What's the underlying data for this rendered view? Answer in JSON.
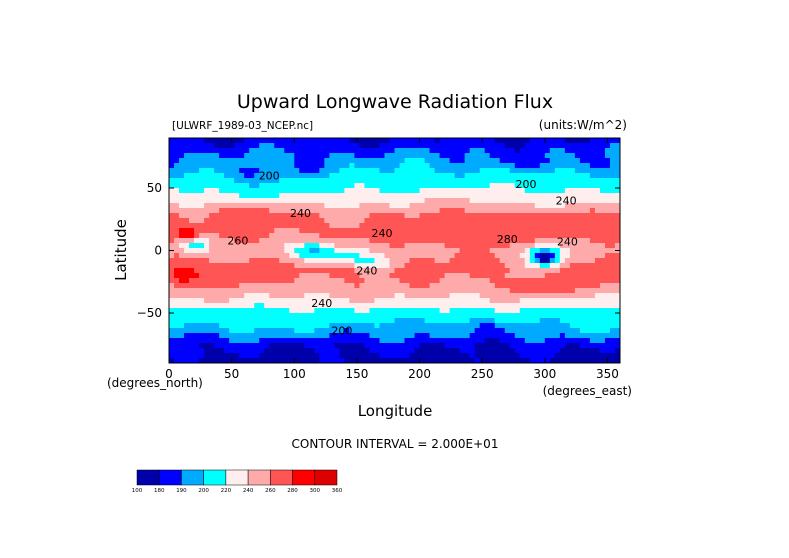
{
  "chart_data": {
    "type": "heatmap",
    "title": "Upward Longwave Radiation Flux",
    "dataset": "[ULWRF_1989-03_NCEP.nc]",
    "units": "(units:W/m^2)",
    "xlabel": "Longitude",
    "ylabel": "Latitude",
    "x_unit_label": "(degrees_east)",
    "y_unit_label": "(degrees_north)",
    "xlim": [
      0,
      360
    ],
    "ylim": [
      -90,
      90
    ],
    "x_ticks": [
      0,
      50,
      100,
      150,
      200,
      250,
      300,
      350
    ],
    "y_ticks": [
      -50,
      0,
      50
    ],
    "contour_interval_label": "CONTOUR INTERVAL = 2.000E+01",
    "contour_labels": [
      {
        "text": "200",
        "lon": 80,
        "lat": 57
      },
      {
        "text": "200",
        "lon": 285,
        "lat": 50
      },
      {
        "text": "240",
        "lon": 317,
        "lat": 37
      },
      {
        "text": "240",
        "lon": 105,
        "lat": 27
      },
      {
        "text": "240",
        "lon": 170,
        "lat": 11
      },
      {
        "text": "260",
        "lon": 55,
        "lat": 5
      },
      {
        "text": "280",
        "lon": 270,
        "lat": 6
      },
      {
        "text": "240",
        "lon": 318,
        "lat": 4
      },
      {
        "text": "240",
        "lon": 158,
        "lat": -19
      },
      {
        "text": "240",
        "lon": 122,
        "lat": -45
      },
      {
        "text": "200",
        "lon": 138,
        "lat": -67
      }
    ],
    "levels": [
      100,
      180,
      190,
      200,
      220,
      240,
      260,
      280,
      300,
      360
    ],
    "colors": [
      "#0000aa",
      "#0000ff",
      "#00aaff",
      "#00ffff",
      "#ffeeee",
      "#ffaaaa",
      "#ff5555",
      "#ff0000",
      "#dd0000"
    ],
    "legend_labels": [
      "100",
      "180",
      "190",
      "200",
      "220",
      "240",
      "260",
      "280",
      "300",
      "360"
    ],
    "field_approximation": {
      "lat_profile": [
        {
          "lat": -90,
          "value": 175
        },
        {
          "lat": -75,
          "value": 182
        },
        {
          "lat": -62,
          "value": 200
        },
        {
          "lat": -50,
          "value": 212
        },
        {
          "lat": -40,
          "value": 236
        },
        {
          "lat": -28,
          "value": 256
        },
        {
          "lat": -15,
          "value": 266
        },
        {
          "lat": 0,
          "value": 255
        },
        {
          "lat": 15,
          "value": 264
        },
        {
          "lat": 28,
          "value": 258
        },
        {
          "lat": 40,
          "value": 232
        },
        {
          "lat": 55,
          "value": 212
        },
        {
          "lat": 65,
          "value": 200
        },
        {
          "lat": 78,
          "value": 190
        },
        {
          "lat": 90,
          "value": 180
        }
      ],
      "anomalies": [
        {
          "lon": 15,
          "lat": 12,
          "dlon": 7,
          "dlat": 6,
          "amp": 42
        },
        {
          "lon": 20,
          "lat": 5,
          "dlon": 12,
          "dlat": 6,
          "amp": -60
        },
        {
          "lon": 10,
          "lat": -20,
          "dlon": 10,
          "dlat": 8,
          "amp": 25
        },
        {
          "lon": 115,
          "lat": 0,
          "dlon": 20,
          "dlat": 8,
          "amp": -55
        },
        {
          "lon": 140,
          "lat": -5,
          "dlon": 20,
          "dlat": 6,
          "amp": -40
        },
        {
          "lon": 165,
          "lat": -10,
          "dlon": 18,
          "dlat": 6,
          "amp": -30
        },
        {
          "lon": 300,
          "lat": -5,
          "dlon": 14,
          "dlat": 10,
          "amp": -80
        },
        {
          "lon": 300,
          "lat": -5,
          "dlon": 5,
          "dlat": 4,
          "amp": -25
        },
        {
          "lon": 65,
          "lat": 30,
          "dlon": 40,
          "dlat": 10,
          "amp": 15
        },
        {
          "lon": 255,
          "lat": 25,
          "dlon": 45,
          "dlat": 10,
          "amp": 15
        },
        {
          "lon": 240,
          "lat": 8,
          "dlon": 50,
          "dlat": 5,
          "amp": 12
        },
        {
          "lon": 340,
          "lat": 20,
          "dlon": 20,
          "dlat": 10,
          "amp": 15
        },
        {
          "lon": 35,
          "lat": -22,
          "dlon": 30,
          "dlat": 8,
          "amp": 15
        },
        {
          "lon": 330,
          "lat": -25,
          "dlon": 25,
          "dlat": 8,
          "amp": 14
        },
        {
          "lon": 290,
          "lat": -30,
          "dlon": 20,
          "dlat": 6,
          "amp": 18
        },
        {
          "lon": 70,
          "lat": 60,
          "dlon": 60,
          "dlat": 10,
          "amp": -12
        },
        {
          "lon": 300,
          "lat": 70,
          "dlon": 40,
          "dlat": 8,
          "amp": -10
        },
        {
          "lon": 90,
          "lat": 45,
          "dlon": 40,
          "dlat": 8,
          "amp": -10
        },
        {
          "lon": 230,
          "lat": 40,
          "dlon": 40,
          "dlat": 6,
          "amp": 8
        },
        {
          "lon": 230,
          "lat": -60,
          "dlon": 60,
          "dlat": 6,
          "amp": -10
        }
      ]
    }
  }
}
